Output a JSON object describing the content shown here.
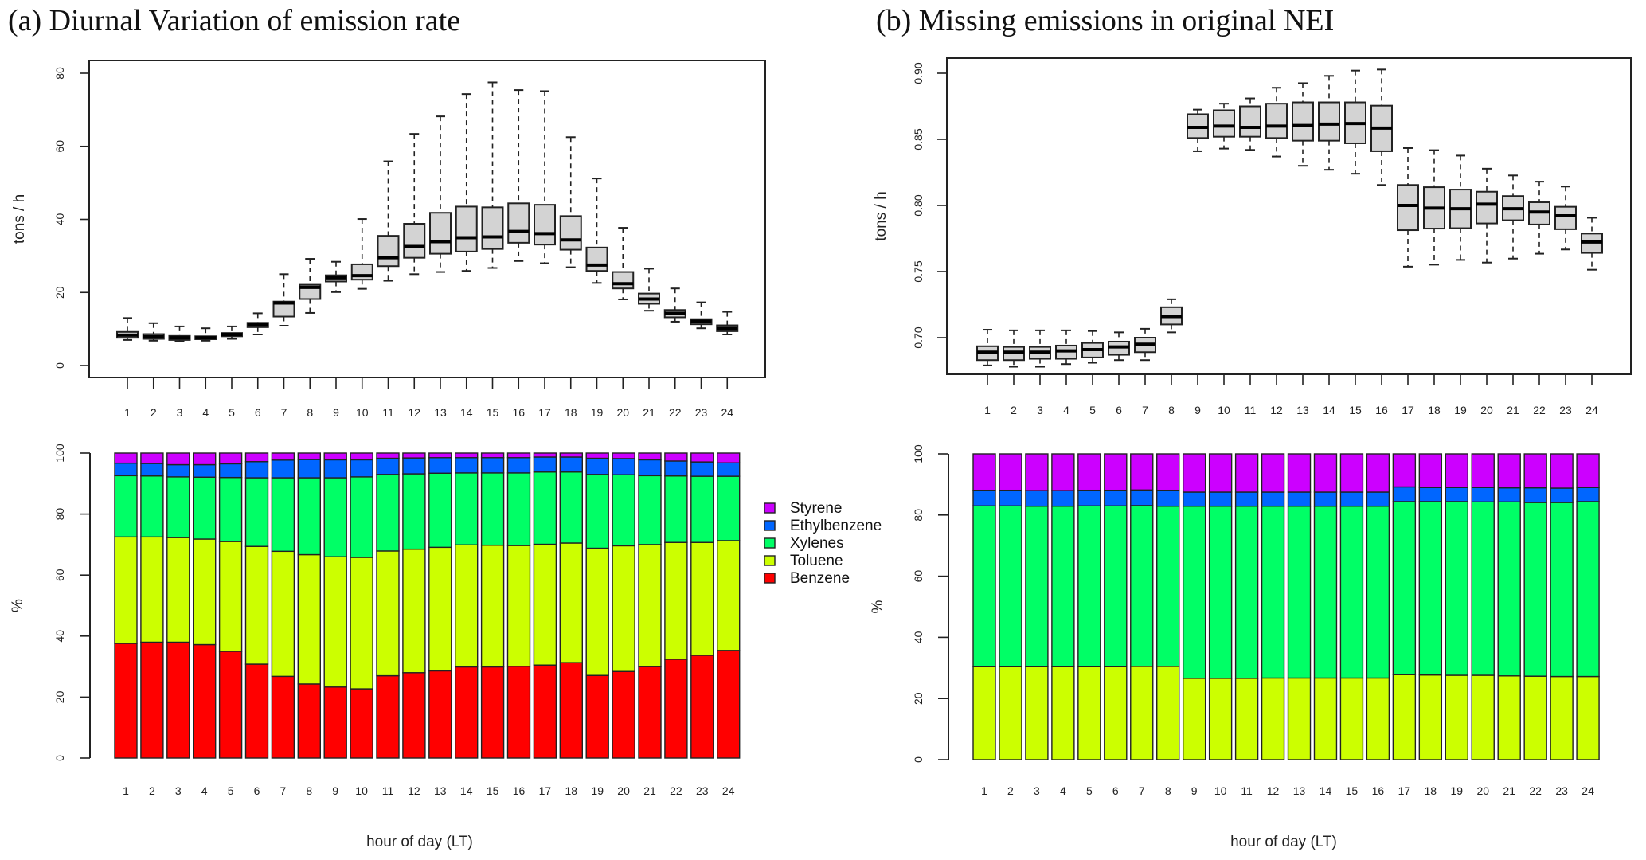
{
  "figure": {
    "panel_a_title": "(a) Diurnal Variation of emission rate",
    "panel_b_title": "(b) Missing emissions in original NEI"
  },
  "chart_data": [
    {
      "id": "a_box",
      "type": "boxplot",
      "panel": "a",
      "title": "",
      "xlabel": "",
      "ylabel": "tons / h",
      "ylim": [
        0,
        83
      ],
      "yticks": [
        0,
        20,
        40,
        60,
        80
      ],
      "ytick_labels": [
        "0",
        "20",
        "40",
        "60",
        "80"
      ],
      "categories": [
        "1",
        "2",
        "3",
        "4",
        "5",
        "6",
        "7",
        "8",
        "9",
        "10",
        "11",
        "12",
        "13",
        "14",
        "15",
        "16",
        "17",
        "18",
        "19",
        "20",
        "21",
        "22",
        "23",
        "24"
      ],
      "stats": [
        {
          "min": 7.0,
          "q1": 7.6,
          "median": 8.3,
          "q3": 9.2,
          "max": 13.0
        },
        {
          "min": 6.8,
          "q1": 7.3,
          "median": 7.9,
          "q3": 8.6,
          "max": 11.6
        },
        {
          "min": 6.6,
          "q1": 7.0,
          "median": 7.6,
          "q3": 8.1,
          "max": 10.7
        },
        {
          "min": 6.8,
          "q1": 7.2,
          "median": 7.6,
          "q3": 8.0,
          "max": 10.2
        },
        {
          "min": 7.3,
          "q1": 8.0,
          "median": 8.5,
          "q3": 8.9,
          "max": 10.7
        },
        {
          "min": 8.5,
          "q1": 10.5,
          "median": 11.2,
          "q3": 11.7,
          "max": 14.3
        },
        {
          "min": 10.9,
          "q1": 13.4,
          "median": 17.1,
          "q3": 17.5,
          "max": 25.0
        },
        {
          "min": 14.4,
          "q1": 18.2,
          "median": 21.4,
          "q3": 22.1,
          "max": 29.2
        },
        {
          "min": 20.1,
          "q1": 23.0,
          "median": 24.0,
          "q3": 24.7,
          "max": 28.4
        },
        {
          "min": 21.0,
          "q1": 23.5,
          "median": 24.6,
          "q3": 27.7,
          "max": 40.1
        },
        {
          "min": 23.2,
          "q1": 27.2,
          "median": 29.5,
          "q3": 35.5,
          "max": 55.9
        },
        {
          "min": 25.0,
          "q1": 29.5,
          "median": 32.6,
          "q3": 38.8,
          "max": 63.4
        },
        {
          "min": 25.6,
          "q1": 30.6,
          "median": 33.9,
          "q3": 41.8,
          "max": 68.2
        },
        {
          "min": 25.9,
          "q1": 31.2,
          "median": 35.0,
          "q3": 43.5,
          "max": 74.3
        },
        {
          "min": 26.7,
          "q1": 31.9,
          "median": 35.2,
          "q3": 43.3,
          "max": 77.5
        },
        {
          "min": 28.6,
          "q1": 33.6,
          "median": 36.7,
          "q3": 44.4,
          "max": 75.4
        },
        {
          "min": 28.0,
          "q1": 33.1,
          "median": 36.1,
          "q3": 44.0,
          "max": 75.1
        },
        {
          "min": 26.9,
          "q1": 31.7,
          "median": 34.4,
          "q3": 40.9,
          "max": 62.5
        },
        {
          "min": 22.6,
          "q1": 25.9,
          "median": 27.5,
          "q3": 32.3,
          "max": 51.2
        },
        {
          "min": 18.1,
          "q1": 21.1,
          "median": 22.4,
          "q3": 25.6,
          "max": 37.7
        },
        {
          "min": 15.0,
          "q1": 16.9,
          "median": 18.2,
          "q3": 19.7,
          "max": 26.5
        },
        {
          "min": 12.0,
          "q1": 13.2,
          "median": 14.3,
          "q3": 15.2,
          "max": 21.1
        },
        {
          "min": 10.2,
          "q1": 11.3,
          "median": 12.1,
          "q3": 12.7,
          "max": 17.3
        },
        {
          "min": 8.5,
          "q1": 9.4,
          "median": 10.2,
          "q3": 11.0,
          "max": 14.7
        }
      ]
    },
    {
      "id": "b_box",
      "type": "boxplot",
      "panel": "b",
      "title": "",
      "xlabel": "",
      "ylabel": "tons / h",
      "ylim": [
        0.672,
        0.912
      ],
      "yticks": [
        0.7,
        0.75,
        0.8,
        0.85,
        0.9
      ],
      "ytick_labels": [
        "0.70",
        "0.75",
        "0.80",
        "0.85",
        "0.90"
      ],
      "categories": [
        "1",
        "2",
        "3",
        "4",
        "5",
        "6",
        "7",
        "8",
        "9",
        "10",
        "11",
        "12",
        "13",
        "14",
        "15",
        "16",
        "17",
        "18",
        "19",
        "20",
        "21",
        "22",
        "23",
        "24"
      ],
      "stats": [
        {
          "min": 0.679,
          "q1": 0.683,
          "median": 0.689,
          "q3": 0.6935,
          "max": 0.706
        },
        {
          "min": 0.678,
          "q1": 0.683,
          "median": 0.689,
          "q3": 0.693,
          "max": 0.7055
        },
        {
          "min": 0.678,
          "q1": 0.684,
          "median": 0.689,
          "q3": 0.693,
          "max": 0.7055
        },
        {
          "min": 0.68,
          "q1": 0.684,
          "median": 0.69,
          "q3": 0.694,
          "max": 0.7055
        },
        {
          "min": 0.681,
          "q1": 0.685,
          "median": 0.691,
          "q3": 0.696,
          "max": 0.705
        },
        {
          "min": 0.683,
          "q1": 0.687,
          "median": 0.693,
          "q3": 0.697,
          "max": 0.704
        },
        {
          "min": 0.683,
          "q1": 0.689,
          "median": 0.695,
          "q3": 0.7,
          "max": 0.7067
        },
        {
          "min": 0.704,
          "q1": 0.71,
          "median": 0.716,
          "q3": 0.723,
          "max": 0.729
        },
        {
          "min": 0.841,
          "q1": 0.851,
          "median": 0.859,
          "q3": 0.869,
          "max": 0.8725
        },
        {
          "min": 0.843,
          "q1": 0.852,
          "median": 0.86,
          "q3": 0.872,
          "max": 0.877
        },
        {
          "min": 0.842,
          "q1": 0.852,
          "median": 0.859,
          "q3": 0.875,
          "max": 0.881
        },
        {
          "min": 0.837,
          "q1": 0.851,
          "median": 0.86,
          "q3": 0.877,
          "max": 0.889
        },
        {
          "min": 0.83,
          "q1": 0.849,
          "median": 0.8605,
          "q3": 0.878,
          "max": 0.8925
        },
        {
          "min": 0.827,
          "q1": 0.849,
          "median": 0.8615,
          "q3": 0.878,
          "max": 0.898
        },
        {
          "min": 0.824,
          "q1": 0.847,
          "median": 0.862,
          "q3": 0.878,
          "max": 0.902
        },
        {
          "min": 0.8155,
          "q1": 0.841,
          "median": 0.8585,
          "q3": 0.8755,
          "max": 0.9028
        },
        {
          "min": 0.7537,
          "q1": 0.7813,
          "median": 0.8,
          "q3": 0.8155,
          "max": 0.8434
        },
        {
          "min": 0.7552,
          "q1": 0.7825,
          "median": 0.798,
          "q3": 0.8138,
          "max": 0.8418
        },
        {
          "min": 0.7588,
          "q1": 0.7828,
          "median": 0.7975,
          "q3": 0.812,
          "max": 0.8377
        },
        {
          "min": 0.7568,
          "q1": 0.7864,
          "median": 0.801,
          "q3": 0.8104,
          "max": 0.8278
        },
        {
          "min": 0.7598,
          "q1": 0.7888,
          "median": 0.7975,
          "q3": 0.8071,
          "max": 0.8227
        },
        {
          "min": 0.7635,
          "q1": 0.7856,
          "median": 0.795,
          "q3": 0.8024,
          "max": 0.818
        },
        {
          "min": 0.7667,
          "q1": 0.782,
          "median": 0.7922,
          "q3": 0.799,
          "max": 0.8143
        },
        {
          "min": 0.7514,
          "q1": 0.7641,
          "median": 0.7724,
          "q3": 0.7787,
          "max": 0.7907
        }
      ]
    },
    {
      "id": "a_stack",
      "type": "bar",
      "stacked": true,
      "panel": "a",
      "title": "",
      "xlabel": "hour of day (LT)",
      "ylabel": "%",
      "ylim": [
        0,
        100
      ],
      "yticks": [
        0,
        20,
        40,
        60,
        80,
        100
      ],
      "ytick_labels": [
        "0",
        "20",
        "40",
        "60",
        "80",
        "100"
      ],
      "legend_position": "right",
      "categories": [
        "1",
        "2",
        "3",
        "4",
        "5",
        "6",
        "7",
        "8",
        "9",
        "10",
        "11",
        "12",
        "13",
        "14",
        "15",
        "16",
        "17",
        "18",
        "19",
        "20",
        "21",
        "22",
        "23",
        "24"
      ],
      "series": [
        {
          "name": "Benzene",
          "color": "#ff0000",
          "values": [
            37.6,
            38.0,
            38.0,
            37.2,
            35.0,
            30.8,
            26.8,
            24.3,
            23.3,
            22.7,
            27.0,
            28.0,
            28.6,
            29.9,
            29.9,
            30.1,
            30.5,
            31.3,
            27.1,
            28.4,
            30.0,
            32.4,
            33.7,
            35.3
          ]
        },
        {
          "name": "Toluene",
          "color": "#ccff00",
          "values": [
            34.9,
            34.5,
            34.3,
            34.6,
            36.0,
            38.6,
            41.0,
            42.4,
            42.7,
            43.1,
            40.9,
            40.5,
            40.5,
            40.0,
            39.9,
            39.6,
            39.6,
            39.2,
            41.7,
            41.2,
            40.0,
            38.3,
            37.0,
            36.0
          ]
        },
        {
          "name": "Xylenes",
          "color": "#00ff66",
          "values": [
            20.1,
            20.0,
            19.9,
            20.3,
            21.0,
            22.5,
            24.1,
            25.2,
            25.9,
            26.4,
            25.1,
            24.7,
            24.3,
            23.6,
            23.7,
            23.8,
            23.7,
            23.3,
            24.2,
            23.3,
            22.6,
            21.8,
            21.7,
            21.1
          ]
        },
        {
          "name": "Ethylbenzene",
          "color": "#0066ff",
          "values": [
            4.1,
            4.1,
            4.0,
            4.1,
            4.5,
            5.3,
            5.8,
            6.0,
            5.9,
            5.6,
            5.3,
            5.2,
            5.1,
            5.0,
            5.0,
            5.0,
            4.9,
            4.9,
            5.3,
            5.3,
            5.2,
            4.9,
            4.7,
            4.4
          ]
        },
        {
          "name": "Styrene",
          "color": "#cc00ff",
          "values": [
            3.3,
            3.4,
            3.8,
            3.8,
            3.5,
            2.8,
            2.3,
            2.1,
            2.2,
            2.2,
            1.7,
            1.6,
            1.5,
            1.5,
            1.5,
            1.5,
            1.3,
            1.3,
            1.7,
            1.8,
            2.2,
            2.6,
            2.9,
            3.2
          ]
        }
      ]
    },
    {
      "id": "b_stack",
      "type": "bar",
      "stacked": true,
      "panel": "b",
      "title": "",
      "xlabel": "hour of day (LT)",
      "ylabel": "%",
      "ylim": [
        0,
        100
      ],
      "yticks": [
        0,
        20,
        40,
        60,
        80,
        100
      ],
      "ytick_labels": [
        "0",
        "20",
        "40",
        "60",
        "80",
        "100"
      ],
      "categories": [
        "1",
        "2",
        "3",
        "4",
        "5",
        "6",
        "7",
        "8",
        "9",
        "10",
        "11",
        "12",
        "13",
        "14",
        "15",
        "16",
        "17",
        "18",
        "19",
        "20",
        "21",
        "22",
        "23",
        "24"
      ],
      "series": [
        {
          "name": "Toluene",
          "color": "#ccff00",
          "values": [
            30.4,
            30.4,
            30.4,
            30.4,
            30.4,
            30.4,
            30.5,
            30.5,
            26.6,
            26.6,
            26.6,
            26.7,
            26.7,
            26.7,
            26.7,
            26.7,
            27.8,
            27.7,
            27.6,
            27.6,
            27.4,
            27.3,
            27.2,
            27.2
          ]
        },
        {
          "name": "Xylenes",
          "color": "#00ff66",
          "values": [
            52.6,
            52.6,
            52.5,
            52.5,
            52.6,
            52.6,
            52.6,
            52.4,
            56.3,
            56.3,
            56.3,
            56.2,
            56.2,
            56.2,
            56.2,
            56.2,
            56.6,
            56.7,
            56.8,
            56.7,
            56.9,
            56.8,
            56.9,
            57.2
          ]
        },
        {
          "name": "Ethylbenzene",
          "color": "#0066ff",
          "values": [
            5.1,
            5.1,
            5.1,
            5.1,
            5.1,
            5.1,
            5.1,
            5.2,
            4.6,
            4.6,
            4.6,
            4.6,
            4.6,
            4.6,
            4.6,
            4.6,
            4.8,
            4.6,
            4.6,
            4.7,
            4.6,
            4.8,
            4.7,
            4.6
          ]
        },
        {
          "name": "Styrene",
          "color": "#cc00ff",
          "values": [
            11.9,
            11.9,
            12.0,
            12.0,
            11.9,
            11.9,
            11.8,
            11.9,
            12.5,
            12.5,
            12.5,
            12.5,
            12.5,
            12.5,
            12.5,
            12.5,
            10.8,
            11.0,
            11.0,
            11.0,
            11.1,
            11.1,
            11.2,
            11.0
          ]
        }
      ]
    }
  ],
  "legend": {
    "items": [
      {
        "name": "Styrene",
        "color": "#cc00ff"
      },
      {
        "name": "Ethylbenzene",
        "color": "#0066ff"
      },
      {
        "name": "Xylenes",
        "color": "#00ff66"
      },
      {
        "name": "Toluene",
        "color": "#ccff00"
      },
      {
        "name": "Benzene",
        "color": "#ff0000"
      }
    ]
  }
}
